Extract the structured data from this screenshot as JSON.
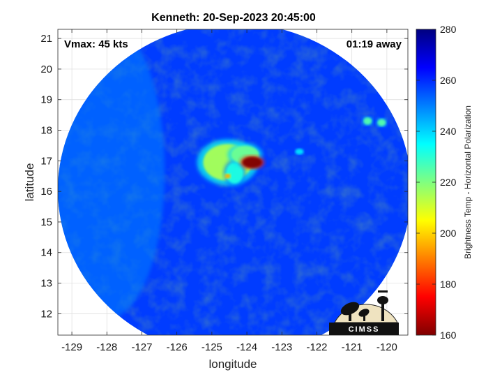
{
  "title": "Kenneth: 20-Sep-2023 20:45:00",
  "annotations": {
    "vmax": "Vmax: 45 kts",
    "away": "01:19 away"
  },
  "chart_data": {
    "type": "heatmap",
    "title": "Kenneth: 20-Sep-2023 20:45:00",
    "xlabel": "longitude",
    "ylabel": "latitude",
    "xlim": [
      -129.4,
      -119.4
    ],
    "ylim": [
      11.3,
      21.3
    ],
    "x_ticks": [
      -129,
      -128,
      -127,
      -126,
      -125,
      -124,
      -123,
      -122,
      -121,
      -120
    ],
    "y_ticks": [
      12,
      13,
      14,
      15,
      16,
      17,
      18,
      19,
      20,
      21
    ],
    "x_tick_labels": [
      "-129",
      "-128",
      "-127",
      "-126",
      "-125",
      "-124",
      "-123",
      "-122",
      "-121",
      "-120"
    ],
    "y_tick_labels": [
      "12",
      "13",
      "14",
      "15",
      "16",
      "17",
      "18",
      "19",
      "20",
      "21"
    ],
    "grid": true,
    "swath_center": {
      "lon": -124.35,
      "lat": 16.05
    },
    "swath_radius": {
      "lon": 5.05,
      "lat": 5.45
    },
    "background_value": 258,
    "features": [
      {
        "lon": -124.55,
        "lat": 16.95,
        "rlon": 0.7,
        "rlat": 0.6,
        "value": 215
      },
      {
        "lon": -124.35,
        "lat": 16.6,
        "rlon": 0.25,
        "rlat": 0.35,
        "value": 232
      },
      {
        "lon": -124.05,
        "lat": 17.2,
        "rlon": 0.4,
        "rlat": 0.3,
        "value": 222
      },
      {
        "lon": -123.85,
        "lat": 16.95,
        "rlon": 0.28,
        "rlat": 0.18,
        "value": 160
      },
      {
        "lon": -124.55,
        "lat": 16.5,
        "rlon": 0.08,
        "rlat": 0.07,
        "value": 195
      },
      {
        "lon": -120.55,
        "lat": 18.3,
        "rlon": 0.12,
        "rlat": 0.12,
        "value": 225
      },
      {
        "lon": -120.15,
        "lat": 18.25,
        "rlon": 0.12,
        "rlat": 0.12,
        "value": 225
      },
      {
        "lon": -122.5,
        "lat": 17.3,
        "rlon": 0.12,
        "rlat": 0.1,
        "value": 238
      }
    ],
    "colorbar": {
      "label": "Brightness Temp - Horizontal Polarization",
      "min": 160,
      "max": 280,
      "ticks": [
        160,
        180,
        200,
        220,
        240,
        260,
        280
      ],
      "tick_labels": [
        "160",
        "180",
        "200",
        "220",
        "240",
        "260",
        "280"
      ],
      "colormap": "jet"
    }
  },
  "logo": {
    "text": "CIMSS"
  },
  "colors": {
    "swath_blue": "#1f60e6",
    "hot_core": "#8a0000",
    "outline": "#000000"
  }
}
